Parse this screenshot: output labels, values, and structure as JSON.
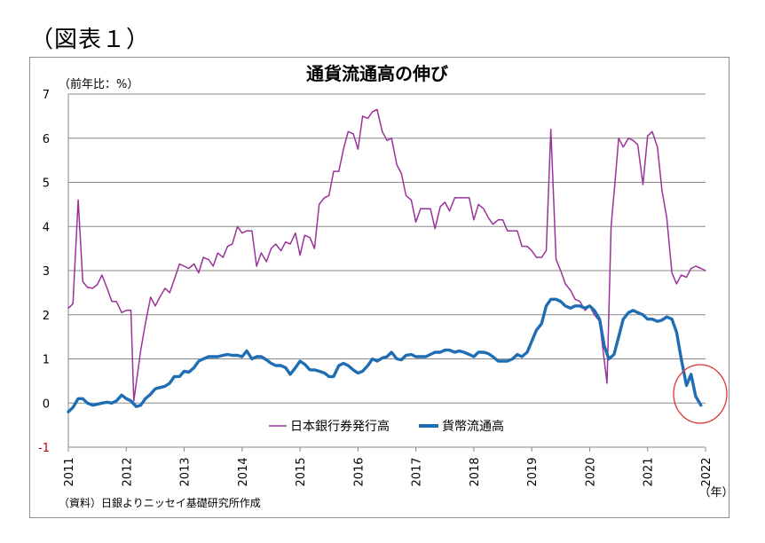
{
  "figure_label": "（図表１）",
  "chart_data": {
    "type": "line",
    "title": "通貨流通高の伸び",
    "unit_label": "（前年比：%）",
    "x_unit": "（年）",
    "source": "（資料）日銀よりニッセイ基礎研究所作成",
    "ylim": [
      -1,
      7
    ],
    "yticks": [
      "7",
      "6",
      "5",
      "4",
      "3",
      "2",
      "1",
      "0",
      "-1"
    ],
    "xticks": [
      "2011",
      "2012",
      "2013",
      "2014",
      "2015",
      "2016",
      "2017",
      "2018",
      "2019",
      "2020",
      "2021",
      "2022"
    ],
    "legend_position": "lower-center",
    "grid": "horizontal",
    "highlight": "red circle around the latest values (end-2021 to 2022)",
    "series": [
      {
        "name": "日本銀行券発行高",
        "color": "#993399",
        "points": [
          [
            2011.0,
            2.15
          ],
          [
            2011.08,
            2.25
          ],
          [
            2011.17,
            4.6
          ],
          [
            2011.25,
            2.75
          ],
          [
            2011.33,
            2.62
          ],
          [
            2011.42,
            2.6
          ],
          [
            2011.5,
            2.68
          ],
          [
            2011.58,
            2.9
          ],
          [
            2011.67,
            2.6
          ],
          [
            2011.75,
            2.3
          ],
          [
            2011.83,
            2.3
          ],
          [
            2011.92,
            2.05
          ],
          [
            2012.0,
            2.1
          ],
          [
            2012.08,
            2.1
          ],
          [
            2012.13,
            0.05
          ],
          [
            2012.25,
            1.2
          ],
          [
            2012.33,
            1.8
          ],
          [
            2012.42,
            2.4
          ],
          [
            2012.5,
            2.2
          ],
          [
            2012.58,
            2.4
          ],
          [
            2012.67,
            2.6
          ],
          [
            2012.75,
            2.5
          ],
          [
            2012.83,
            2.8
          ],
          [
            2012.92,
            3.15
          ],
          [
            2013.0,
            3.1
          ],
          [
            2013.08,
            3.05
          ],
          [
            2013.17,
            3.15
          ],
          [
            2013.25,
            2.95
          ],
          [
            2013.33,
            3.3
          ],
          [
            2013.42,
            3.25
          ],
          [
            2013.5,
            3.1
          ],
          [
            2013.58,
            3.4
          ],
          [
            2013.67,
            3.3
          ],
          [
            2013.75,
            3.55
          ],
          [
            2013.83,
            3.6
          ],
          [
            2013.92,
            4.0
          ],
          [
            2014.0,
            3.85
          ],
          [
            2014.08,
            3.9
          ],
          [
            2014.17,
            3.9
          ],
          [
            2014.25,
            3.1
          ],
          [
            2014.33,
            3.4
          ],
          [
            2014.42,
            3.2
          ],
          [
            2014.5,
            3.5
          ],
          [
            2014.58,
            3.6
          ],
          [
            2014.67,
            3.45
          ],
          [
            2014.75,
            3.65
          ],
          [
            2014.83,
            3.6
          ],
          [
            2014.92,
            3.85
          ],
          [
            2015.0,
            3.35
          ],
          [
            2015.08,
            3.8
          ],
          [
            2015.17,
            3.75
          ],
          [
            2015.25,
            3.5
          ],
          [
            2015.33,
            4.5
          ],
          [
            2015.42,
            4.65
          ],
          [
            2015.5,
            4.7
          ],
          [
            2015.58,
            5.25
          ],
          [
            2015.67,
            5.25
          ],
          [
            2015.75,
            5.75
          ],
          [
            2015.83,
            6.15
          ],
          [
            2015.92,
            6.1
          ],
          [
            2016.0,
            5.75
          ],
          [
            2016.08,
            6.5
          ],
          [
            2016.17,
            6.45
          ],
          [
            2016.25,
            6.6
          ],
          [
            2016.33,
            6.65
          ],
          [
            2016.42,
            6.15
          ],
          [
            2016.5,
            5.95
          ],
          [
            2016.58,
            6.0
          ],
          [
            2016.67,
            5.4
          ],
          [
            2016.75,
            5.2
          ],
          [
            2016.83,
            4.7
          ],
          [
            2016.92,
            4.6
          ],
          [
            2017.0,
            4.1
          ],
          [
            2017.08,
            4.4
          ],
          [
            2017.17,
            4.4
          ],
          [
            2017.25,
            4.4
          ],
          [
            2017.33,
            3.95
          ],
          [
            2017.42,
            4.45
          ],
          [
            2017.5,
            4.55
          ],
          [
            2017.58,
            4.35
          ],
          [
            2017.67,
            4.65
          ],
          [
            2017.75,
            4.65
          ],
          [
            2017.83,
            4.65
          ],
          [
            2017.92,
            4.65
          ],
          [
            2018.0,
            4.15
          ],
          [
            2018.08,
            4.5
          ],
          [
            2018.17,
            4.4
          ],
          [
            2018.25,
            4.2
          ],
          [
            2018.33,
            4.05
          ],
          [
            2018.42,
            4.15
          ],
          [
            2018.5,
            4.15
          ],
          [
            2018.58,
            3.9
          ],
          [
            2018.67,
            3.9
          ],
          [
            2018.75,
            3.9
          ],
          [
            2018.83,
            3.55
          ],
          [
            2018.92,
            3.55
          ],
          [
            2019.0,
            3.45
          ],
          [
            2019.08,
            3.3
          ],
          [
            2019.17,
            3.3
          ],
          [
            2019.25,
            3.45
          ],
          [
            2019.33,
            6.2
          ],
          [
            2019.42,
            3.25
          ],
          [
            2019.5,
            3.0
          ],
          [
            2019.58,
            2.7
          ],
          [
            2019.67,
            2.55
          ],
          [
            2019.75,
            2.35
          ],
          [
            2019.83,
            2.3
          ],
          [
            2019.92,
            2.1
          ],
          [
            2020.0,
            2.2
          ],
          [
            2020.08,
            2.0
          ],
          [
            2020.17,
            1.85
          ],
          [
            2020.3,
            0.45
          ],
          [
            2020.37,
            4.0
          ],
          [
            2020.45,
            5.2
          ],
          [
            2020.5,
            6.0
          ],
          [
            2020.58,
            5.8
          ],
          [
            2020.67,
            6.0
          ],
          [
            2020.75,
            5.95
          ],
          [
            2020.83,
            5.85
          ],
          [
            2020.92,
            4.95
          ],
          [
            2021.0,
            6.05
          ],
          [
            2021.08,
            6.15
          ],
          [
            2021.17,
            5.8
          ],
          [
            2021.25,
            4.8
          ],
          [
            2021.33,
            4.2
          ],
          [
            2021.42,
            2.95
          ],
          [
            2021.5,
            2.7
          ],
          [
            2021.58,
            2.9
          ],
          [
            2021.67,
            2.85
          ],
          [
            2021.75,
            3.05
          ],
          [
            2021.83,
            3.1
          ],
          [
            2021.92,
            3.05
          ],
          [
            2022.0,
            3.0
          ]
        ]
      },
      {
        "name": "貨幣流通高",
        "color": "#1f6eb4",
        "points": [
          [
            2011.0,
            -0.2
          ],
          [
            2011.08,
            -0.1
          ],
          [
            2011.17,
            0.1
          ],
          [
            2011.25,
            0.1
          ],
          [
            2011.33,
            0.0
          ],
          [
            2011.42,
            -0.05
          ],
          [
            2011.5,
            -0.03
          ],
          [
            2011.58,
            0.0
          ],
          [
            2011.67,
            0.02
          ],
          [
            2011.75,
            0.0
          ],
          [
            2011.83,
            0.05
          ],
          [
            2011.92,
            0.18
          ],
          [
            2012.0,
            0.1
          ],
          [
            2012.08,
            0.05
          ],
          [
            2012.17,
            -0.08
          ],
          [
            2012.25,
            -0.05
          ],
          [
            2012.33,
            0.1
          ],
          [
            2012.42,
            0.2
          ],
          [
            2012.5,
            0.32
          ],
          [
            2012.58,
            0.35
          ],
          [
            2012.67,
            0.38
          ],
          [
            2012.75,
            0.45
          ],
          [
            2012.83,
            0.6
          ],
          [
            2012.92,
            0.6
          ],
          [
            2013.0,
            0.72
          ],
          [
            2013.08,
            0.7
          ],
          [
            2013.17,
            0.8
          ],
          [
            2013.25,
            0.95
          ],
          [
            2013.33,
            1.0
          ],
          [
            2013.42,
            1.05
          ],
          [
            2013.5,
            1.05
          ],
          [
            2013.58,
            1.05
          ],
          [
            2013.67,
            1.08
          ],
          [
            2013.75,
            1.1
          ],
          [
            2013.83,
            1.08
          ],
          [
            2013.92,
            1.08
          ],
          [
            2014.0,
            1.05
          ],
          [
            2014.08,
            1.18
          ],
          [
            2014.17,
            1.0
          ],
          [
            2014.25,
            1.05
          ],
          [
            2014.33,
            1.05
          ],
          [
            2014.42,
            0.98
          ],
          [
            2014.5,
            0.9
          ],
          [
            2014.58,
            0.85
          ],
          [
            2014.67,
            0.85
          ],
          [
            2014.75,
            0.8
          ],
          [
            2014.83,
            0.65
          ],
          [
            2014.92,
            0.8
          ],
          [
            2015.0,
            0.95
          ],
          [
            2015.08,
            0.88
          ],
          [
            2015.17,
            0.75
          ],
          [
            2015.25,
            0.75
          ],
          [
            2015.33,
            0.72
          ],
          [
            2015.42,
            0.68
          ],
          [
            2015.5,
            0.6
          ],
          [
            2015.58,
            0.6
          ],
          [
            2015.67,
            0.85
          ],
          [
            2015.75,
            0.9
          ],
          [
            2015.83,
            0.85
          ],
          [
            2015.92,
            0.75
          ],
          [
            2016.0,
            0.68
          ],
          [
            2016.08,
            0.72
          ],
          [
            2016.17,
            0.85
          ],
          [
            2016.25,
            1.0
          ],
          [
            2016.33,
            0.95
          ],
          [
            2016.42,
            1.02
          ],
          [
            2016.5,
            1.05
          ],
          [
            2016.58,
            1.15
          ],
          [
            2016.67,
            1.0
          ],
          [
            2016.75,
            0.98
          ],
          [
            2016.83,
            1.08
          ],
          [
            2016.92,
            1.1
          ],
          [
            2017.0,
            1.05
          ],
          [
            2017.08,
            1.05
          ],
          [
            2017.17,
            1.05
          ],
          [
            2017.25,
            1.1
          ],
          [
            2017.33,
            1.15
          ],
          [
            2017.42,
            1.15
          ],
          [
            2017.5,
            1.2
          ],
          [
            2017.58,
            1.2
          ],
          [
            2017.67,
            1.15
          ],
          [
            2017.75,
            1.18
          ],
          [
            2017.83,
            1.15
          ],
          [
            2017.92,
            1.1
          ],
          [
            2018.0,
            1.05
          ],
          [
            2018.08,
            1.15
          ],
          [
            2018.17,
            1.15
          ],
          [
            2018.25,
            1.12
          ],
          [
            2018.33,
            1.05
          ],
          [
            2018.42,
            0.95
          ],
          [
            2018.5,
            0.95
          ],
          [
            2018.58,
            0.95
          ],
          [
            2018.67,
            1.0
          ],
          [
            2018.75,
            1.1
          ],
          [
            2018.83,
            1.05
          ],
          [
            2018.92,
            1.15
          ],
          [
            2019.0,
            1.4
          ],
          [
            2019.08,
            1.65
          ],
          [
            2019.17,
            1.8
          ],
          [
            2019.25,
            2.2
          ],
          [
            2019.33,
            2.35
          ],
          [
            2019.42,
            2.35
          ],
          [
            2019.5,
            2.3
          ],
          [
            2019.58,
            2.2
          ],
          [
            2019.67,
            2.15
          ],
          [
            2019.75,
            2.2
          ],
          [
            2019.83,
            2.2
          ],
          [
            2019.92,
            2.15
          ],
          [
            2020.0,
            2.2
          ],
          [
            2020.08,
            2.1
          ],
          [
            2020.17,
            1.9
          ],
          [
            2020.25,
            1.3
          ],
          [
            2020.33,
            1.0
          ],
          [
            2020.42,
            1.1
          ],
          [
            2020.5,
            1.5
          ],
          [
            2020.58,
            1.9
          ],
          [
            2020.67,
            2.05
          ],
          [
            2020.75,
            2.1
          ],
          [
            2020.83,
            2.05
          ],
          [
            2020.92,
            2.0
          ],
          [
            2021.0,
            1.9
          ],
          [
            2021.08,
            1.9
          ],
          [
            2021.17,
            1.85
          ],
          [
            2021.25,
            1.88
          ],
          [
            2021.33,
            1.95
          ],
          [
            2021.42,
            1.9
          ],
          [
            2021.5,
            1.6
          ],
          [
            2021.58,
            1.0
          ],
          [
            2021.67,
            0.4
          ],
          [
            2021.75,
            0.65
          ],
          [
            2021.83,
            0.15
          ],
          [
            2021.92,
            -0.05
          ]
        ]
      }
    ]
  }
}
